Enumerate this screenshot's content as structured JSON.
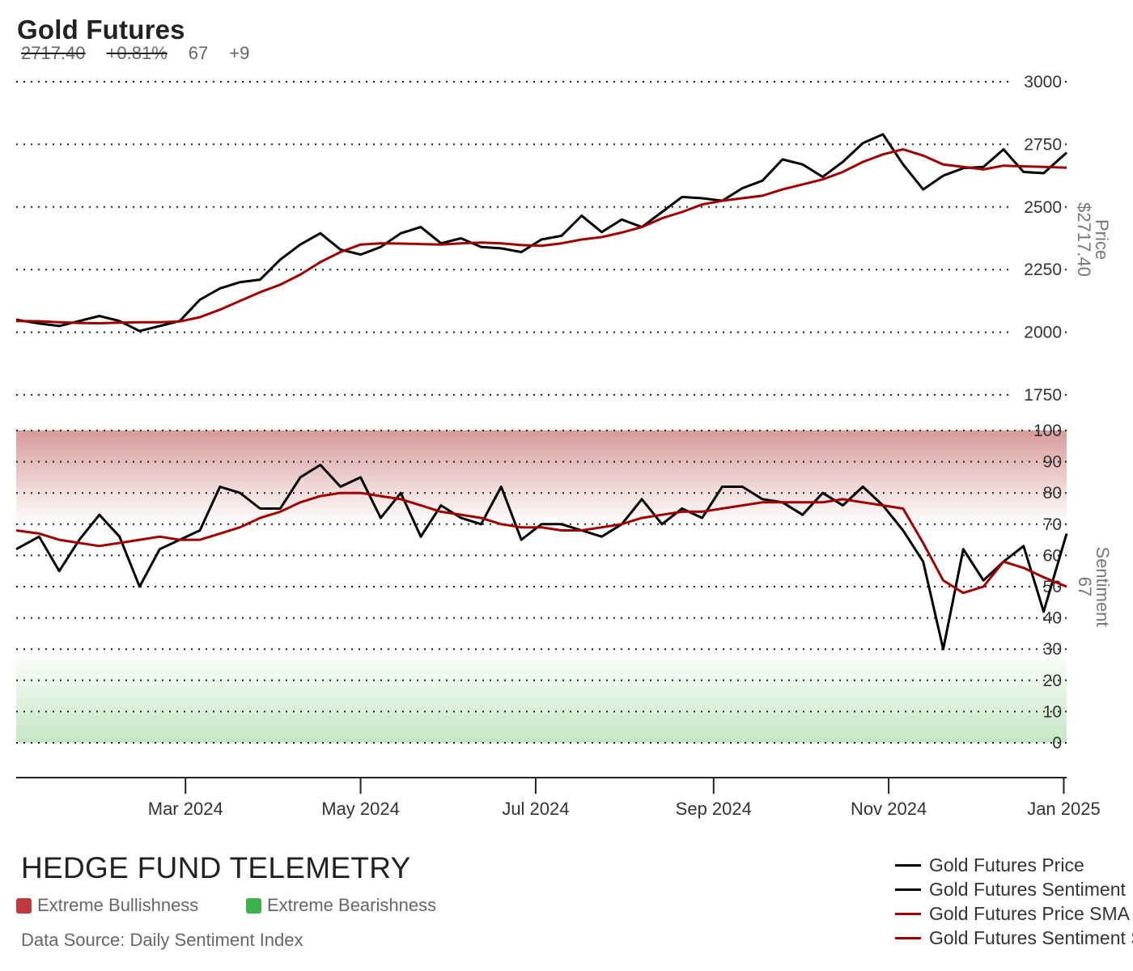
{
  "header": {
    "title": "Gold Futures",
    "last_price": "2717.40",
    "change_pct": "+0.81%",
    "sentiment": "67",
    "sentiment_change": "+9"
  },
  "footer": {
    "brand": "HEDGE FUND TELEMETRY",
    "zone_bull_label": "Extreme Bullishness",
    "zone_bear_label": "Extreme Bearishness",
    "source": "Data Source: Daily Sentiment Index"
  },
  "colors": {
    "price": "#000000",
    "sma": "#a00000",
    "bull_zone": "#c87c7c",
    "bear_zone": "#5cc05c",
    "bull_swatch": "#c0393b",
    "bear_swatch": "#3bb24a"
  },
  "legend": [
    {
      "label": "Gold Futures Price",
      "color": "#000000"
    },
    {
      "label": "Gold Futures Sentiment",
      "color": "#000000"
    },
    {
      "label": "Gold Futures Price SMA",
      "color": "#a00000"
    },
    {
      "label": "Gold Futures Sentiment SMA",
      "color": "#a00000"
    }
  ],
  "chart_data": [
    {
      "type": "line",
      "panel": "price",
      "ylabel": "Price",
      "last_value_label": "$2717.40",
      "ylim": [
        1750,
        3000
      ],
      "yticks": [
        1750,
        2000,
        2250,
        2500,
        2750,
        3000
      ],
      "grid": true,
      "xlim": [
        "2024-01-02",
        "2025-01-02"
      ],
      "x": [
        "2024-01-02",
        "2024-01-10",
        "2024-01-17",
        "2024-01-24",
        "2024-01-31",
        "2024-02-07",
        "2024-02-14",
        "2024-02-21",
        "2024-02-28",
        "2024-03-06",
        "2024-03-13",
        "2024-03-20",
        "2024-03-27",
        "2024-04-03",
        "2024-04-10",
        "2024-04-17",
        "2024-04-24",
        "2024-05-01",
        "2024-05-08",
        "2024-05-15",
        "2024-05-22",
        "2024-05-29",
        "2024-06-05",
        "2024-06-12",
        "2024-06-19",
        "2024-06-26",
        "2024-07-03",
        "2024-07-10",
        "2024-07-17",
        "2024-07-24",
        "2024-07-31",
        "2024-08-07",
        "2024-08-14",
        "2024-08-21",
        "2024-08-28",
        "2024-09-04",
        "2024-09-11",
        "2024-09-18",
        "2024-09-25",
        "2024-10-02",
        "2024-10-09",
        "2024-10-16",
        "2024-10-23",
        "2024-10-30",
        "2024-11-06",
        "2024-11-13",
        "2024-11-20",
        "2024-11-27",
        "2024-12-04",
        "2024-12-11",
        "2024-12-18",
        "2024-12-25",
        "2025-01-02"
      ],
      "series": [
        {
          "name": "Gold Futures Price",
          "values": [
            2050,
            2035,
            2025,
            2045,
            2065,
            2045,
            2005,
            2025,
            2045,
            2130,
            2175,
            2200,
            2210,
            2290,
            2350,
            2395,
            2330,
            2310,
            2340,
            2395,
            2420,
            2355,
            2375,
            2340,
            2335,
            2320,
            2370,
            2385,
            2465,
            2400,
            2450,
            2420,
            2480,
            2540,
            2535,
            2525,
            2575,
            2605,
            2690,
            2670,
            2620,
            2680,
            2755,
            2790,
            2670,
            2570,
            2625,
            2655,
            2660,
            2730,
            2640,
            2635,
            2717
          ]
        },
        {
          "name": "Gold Futures Price SMA",
          "values": [
            2045,
            2044,
            2040,
            2037,
            2036,
            2038,
            2040,
            2040,
            2043,
            2060,
            2090,
            2125,
            2160,
            2190,
            2230,
            2280,
            2320,
            2350,
            2355,
            2354,
            2352,
            2350,
            2355,
            2358,
            2355,
            2348,
            2345,
            2355,
            2370,
            2380,
            2398,
            2420,
            2455,
            2480,
            2510,
            2525,
            2535,
            2545,
            2570,
            2590,
            2610,
            2640,
            2680,
            2710,
            2730,
            2705,
            2670,
            2660,
            2650,
            2665,
            2662,
            2660,
            2657
          ]
        }
      ]
    },
    {
      "type": "line",
      "panel": "sentiment",
      "ylabel": "Sentiment",
      "last_value_label": "67",
      "ylim": [
        0,
        100
      ],
      "yticks": [
        0,
        10,
        20,
        30,
        40,
        50,
        60,
        70,
        80,
        90,
        100
      ],
      "bands": [
        {
          "label": "Extreme Bullishness",
          "from": 70,
          "to": 100
        },
        {
          "label": "Extreme Bearishness",
          "from": 0,
          "to": 30
        }
      ],
      "grid": true,
      "xlim": [
        "2024-01-02",
        "2025-01-02"
      ],
      "xticks": [
        "Mar 2024",
        "May 2024",
        "Jul 2024",
        "Sep 2024",
        "Nov 2024",
        "Jan 2025"
      ],
      "x": [
        "2024-01-02",
        "2024-01-10",
        "2024-01-17",
        "2024-01-24",
        "2024-01-31",
        "2024-02-07",
        "2024-02-14",
        "2024-02-21",
        "2024-02-28",
        "2024-03-06",
        "2024-03-13",
        "2024-03-20",
        "2024-03-27",
        "2024-04-03",
        "2024-04-10",
        "2024-04-17",
        "2024-04-24",
        "2024-05-01",
        "2024-05-08",
        "2024-05-15",
        "2024-05-22",
        "2024-05-29",
        "2024-06-05",
        "2024-06-12",
        "2024-06-19",
        "2024-06-26",
        "2024-07-03",
        "2024-07-10",
        "2024-07-17",
        "2024-07-24",
        "2024-07-31",
        "2024-08-07",
        "2024-08-14",
        "2024-08-21",
        "2024-08-28",
        "2024-09-04",
        "2024-09-11",
        "2024-09-18",
        "2024-09-25",
        "2024-10-02",
        "2024-10-09",
        "2024-10-16",
        "2024-10-23",
        "2024-10-30",
        "2024-11-06",
        "2024-11-13",
        "2024-11-20",
        "2024-11-27",
        "2024-12-04",
        "2024-12-11",
        "2024-12-18",
        "2024-12-25",
        "2025-01-02"
      ],
      "series": [
        {
          "name": "Gold Futures Sentiment",
          "values": [
            62,
            66,
            55,
            65,
            73,
            66,
            50,
            62,
            65,
            68,
            82,
            80,
            75,
            75,
            85,
            89,
            82,
            85,
            72,
            80,
            66,
            76,
            72,
            70,
            82,
            65,
            70,
            70,
            68,
            66,
            70,
            78,
            70,
            75,
            72,
            82,
            82,
            78,
            77,
            73,
            80,
            76,
            82,
            76,
            68,
            58,
            30,
            62,
            52,
            58,
            63,
            42,
            67
          ]
        },
        {
          "name": "Gold Futures Sentiment SMA",
          "values": [
            68,
            67,
            65,
            64,
            63,
            64,
            65,
            66,
            65,
            65,
            67,
            69,
            72,
            74,
            77,
            79,
            80,
            80,
            79,
            78,
            76,
            74,
            73,
            72,
            70,
            69,
            69,
            68,
            68,
            69,
            70,
            72,
            73,
            74,
            74,
            75,
            76,
            77,
            77,
            77,
            77,
            78,
            77,
            76,
            75,
            64,
            52,
            48,
            50,
            58,
            56,
            53,
            50
          ]
        }
      ]
    }
  ]
}
